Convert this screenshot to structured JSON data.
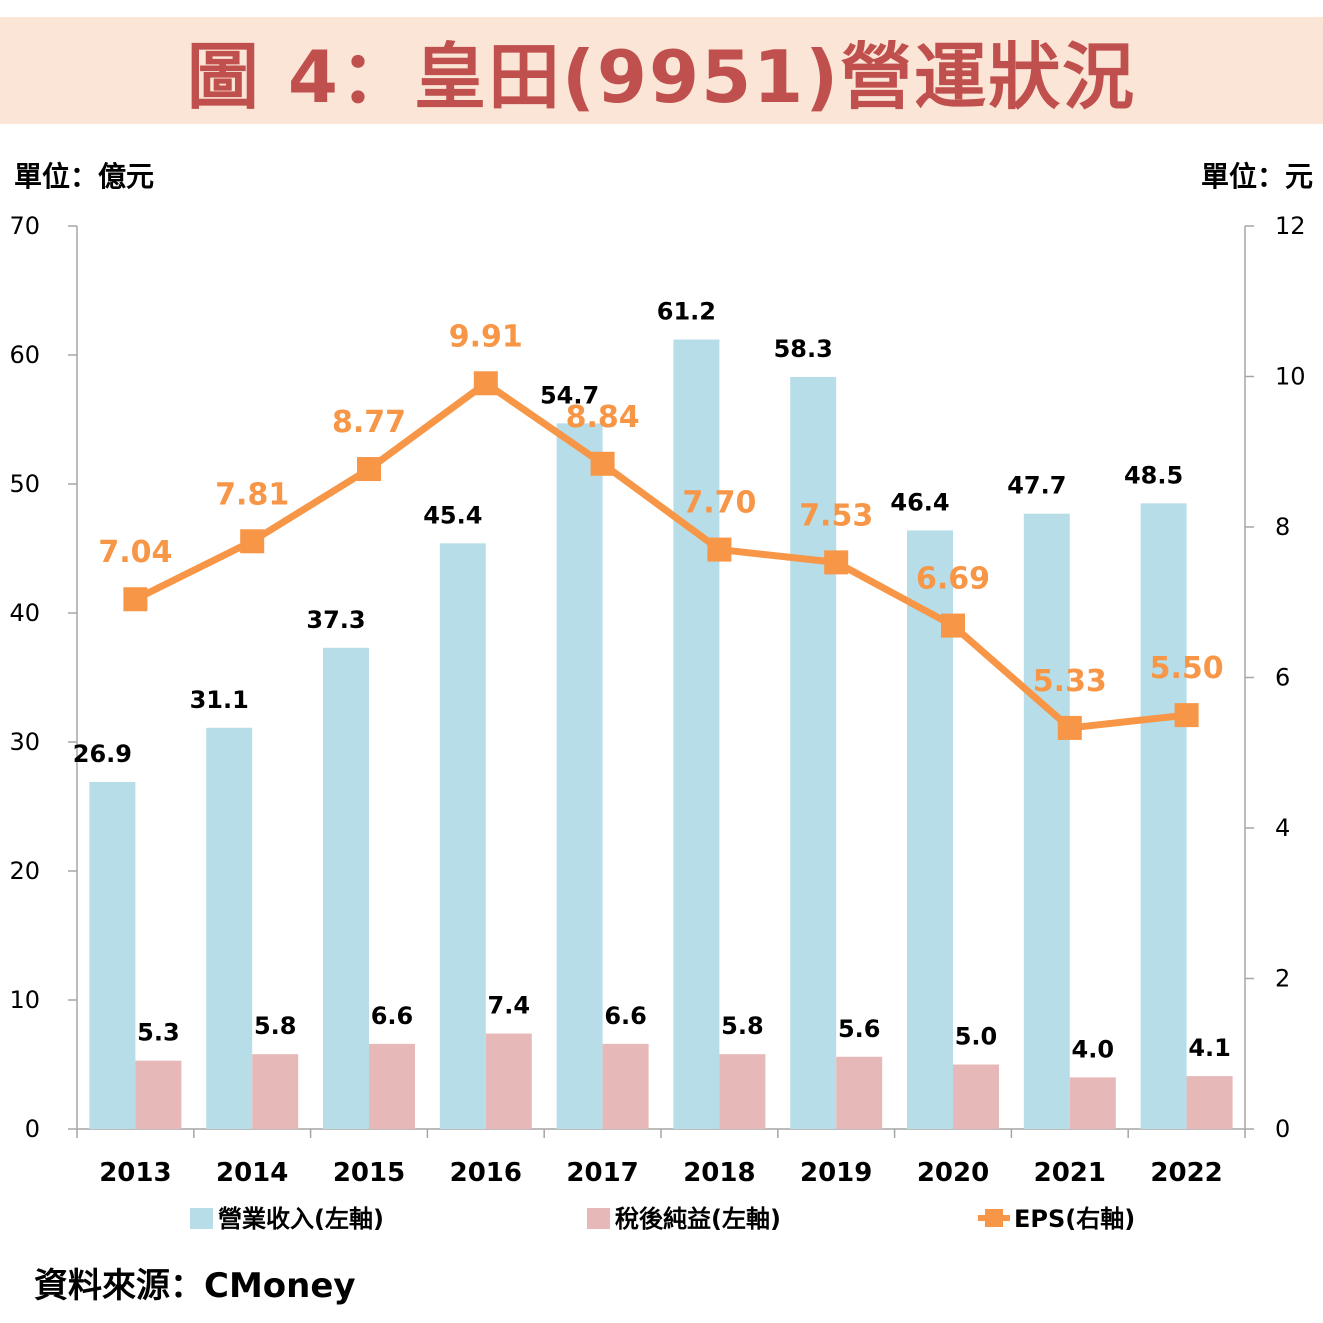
{
  "title": "圖 4：皇田(9951)營運狀況",
  "left_unit": "單位：億元",
  "right_unit": "單位：元",
  "source": "資料來源：CMoney",
  "colors": {
    "revenue": "#b7dde8",
    "net_income": "#e6b9b8",
    "eps": "#f79646",
    "title_bg": "#fbe5d6",
    "title_text": "#c0504d"
  },
  "chart_data": {
    "type": "bar+line",
    "categories": [
      "2013",
      "2014",
      "2015",
      "2016",
      "2017",
      "2018",
      "2019",
      "2020",
      "2021",
      "2022"
    ],
    "series": [
      {
        "name": "營業收入(左軸)",
        "type": "bar",
        "axis": "left",
        "values": [
          26.9,
          31.1,
          37.3,
          45.4,
          54.7,
          61.2,
          58.3,
          46.4,
          47.7,
          48.5
        ],
        "labels": [
          "26.9",
          "31.1",
          "37.3",
          "45.4",
          "54.7",
          "61.2",
          "58.3",
          "46.4",
          "47.7",
          "48.5"
        ]
      },
      {
        "name": "稅後純益(左軸)",
        "type": "bar",
        "axis": "left",
        "values": [
          5.3,
          5.8,
          6.6,
          7.4,
          6.6,
          5.8,
          5.6,
          5.0,
          4.0,
          4.1
        ],
        "labels": [
          "5.3",
          "5.8",
          "6.6",
          "7.4",
          "6.6",
          "5.8",
          "5.6",
          "5.0",
          "4.0",
          "4.1"
        ]
      },
      {
        "name": "EPS(右軸)",
        "type": "line",
        "axis": "right",
        "values": [
          7.04,
          7.81,
          8.77,
          9.91,
          8.84,
          7.7,
          7.53,
          6.69,
          5.33,
          5.5
        ],
        "labels": [
          "7.04",
          "7.81",
          "8.77",
          "9.91",
          "8.84",
          "7.70",
          "7.53",
          "6.69",
          "5.33",
          "5.50"
        ]
      }
    ],
    "y_left": {
      "range": [
        0,
        70
      ],
      "ticks": [
        "0",
        "10",
        "20",
        "30",
        "40",
        "50",
        "60",
        "70"
      ]
    },
    "y_right": {
      "range": [
        0,
        12
      ],
      "ticks": [
        "0",
        "2",
        "4",
        "6",
        "8",
        "10",
        "12"
      ]
    },
    "grid": false,
    "legend_position": "bottom"
  }
}
